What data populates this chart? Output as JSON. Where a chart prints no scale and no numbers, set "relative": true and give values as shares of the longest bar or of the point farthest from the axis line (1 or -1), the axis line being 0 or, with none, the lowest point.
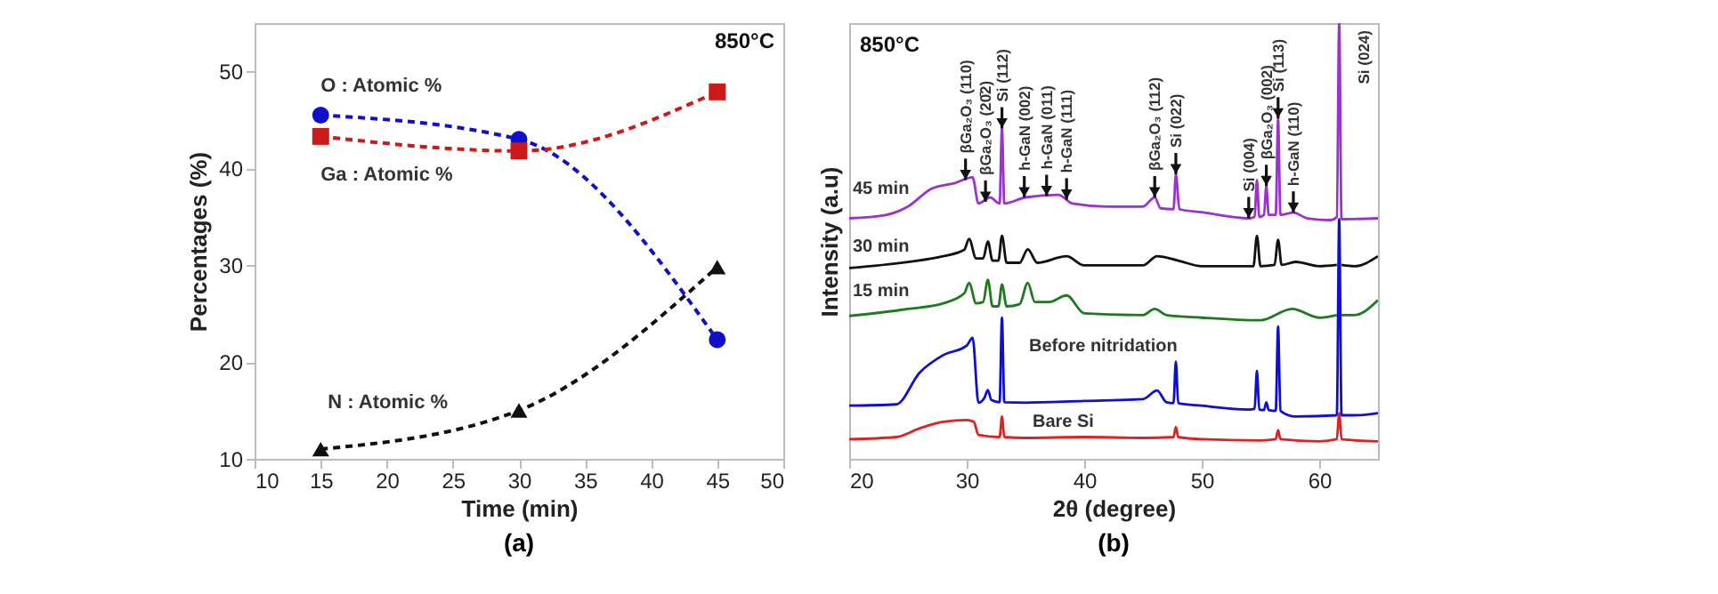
{
  "chart_data": [
    {
      "type": "line",
      "xlabel": "Time (min)",
      "ylabel": "Percentages (%)",
      "xlim": [
        10,
        50
      ],
      "xticks": [
        10,
        15,
        20,
        25,
        30,
        35,
        40,
        45,
        50
      ],
      "ylim": [
        10,
        55
      ],
      "yticks": [
        10,
        20,
        30,
        40,
        50
      ],
      "grid": false,
      "line_style": "dashed",
      "x": [
        15,
        30,
        45
      ],
      "series": [
        {
          "name": "O : Atomic %",
          "color": "#1010cc",
          "marker": "circle",
          "values": [
            45.5,
            43,
            22.3
          ]
        },
        {
          "name": "Ga : Atomic %",
          "color": "#cc1a1a",
          "marker": "square",
          "values": [
            43.3,
            41.8,
            47.9
          ]
        },
        {
          "name": "N : Atomic %",
          "color": "#111111",
          "marker": "triangle",
          "values": [
            11,
            15,
            29.8
          ]
        }
      ],
      "annotations": [
        "850°C",
        "(a)"
      ]
    },
    {
      "type": "line",
      "relative": true,
      "xlabel": "2θ (degree)",
      "ylabel": "Intensity (a.u)",
      "xlim": [
        20,
        65
      ],
      "xticks": [
        20,
        30,
        40,
        50,
        60
      ],
      "grid": false,
      "line_style": "solid",
      "marker": "none",
      "series": [
        {
          "name": "45 min",
          "color": "#9933cc",
          "x": [
            20,
            23,
            25,
            27,
            29,
            30.5,
            31,
            32,
            32.8,
            33,
            33.2,
            35,
            37.8,
            39,
            42,
            45,
            46,
            46.5,
            47.6,
            47.8,
            48.1,
            50,
            54,
            54.5,
            54.7,
            54.9,
            55.3,
            55.5,
            55.7,
            56.3,
            56.5,
            56.7,
            57.8,
            59,
            61,
            61.5,
            61.7,
            61.9,
            65
          ],
          "values": [
            0.552,
            0.559,
            0.579,
            0.62,
            0.633,
            0.646,
            0.586,
            0.6,
            0.586,
            0.758,
            0.586,
            0.6,
            0.606,
            0.586,
            0.579,
            0.579,
            0.6,
            0.575,
            0.573,
            0.653,
            0.573,
            0.566,
            0.552,
            0.555,
            0.64,
            0.555,
            0.56,
            0.626,
            0.56,
            0.56,
            0.781,
            0.56,
            0.565,
            0.552,
            0.548,
            0.555,
            1.0,
            0.55,
            0.552
          ]
        },
        {
          "name": "30 min",
          "color": "#111111",
          "x": [
            20,
            25,
            28,
            29.8,
            30.2,
            30.8,
            31.4,
            31.8,
            32.2,
            32.7,
            33,
            33.4,
            34.5,
            35.2,
            36,
            38.5,
            40,
            45,
            46.2,
            48,
            50,
            54.4,
            54.7,
            55,
            56.2,
            56.5,
            56.8,
            58,
            60,
            61.5,
            61.7,
            61.9,
            63,
            65
          ],
          "values": [
            0.438,
            0.452,
            0.465,
            0.48,
            0.505,
            0.46,
            0.46,
            0.499,
            0.455,
            0.455,
            0.512,
            0.45,
            0.45,
            0.481,
            0.45,
            0.465,
            0.444,
            0.444,
            0.465,
            0.455,
            0.442,
            0.442,
            0.512,
            0.442,
            0.445,
            0.503,
            0.445,
            0.452,
            0.442,
            0.445,
            null,
            0.445,
            0.442,
            0.465
          ]
        },
        {
          "name": "15 min",
          "color": "#1e7a1e",
          "x": [
            20,
            25,
            28,
            29.8,
            30.2,
            30.8,
            31.4,
            31.8,
            32.2,
            32.7,
            33,
            33.4,
            34.5,
            35.2,
            35.8,
            37,
            38.5,
            40,
            45,
            46,
            47,
            50,
            55,
            57.7,
            60,
            61.5,
            61.7,
            61.9,
            63,
            65
          ],
          "values": [
            0.328,
            0.344,
            0.357,
            0.38,
            0.404,
            0.357,
            0.36,
            0.411,
            0.35,
            0.35,
            0.4,
            0.35,
            0.355,
            0.404,
            0.36,
            0.36,
            0.375,
            0.334,
            0.33,
            0.344,
            0.33,
            0.324,
            0.318,
            0.344,
            0.324,
            0.33,
            null,
            0.33,
            0.33,
            0.364
          ]
        },
        {
          "name": "Before nitridation",
          "color": "#1010cc",
          "x": [
            20,
            24,
            26,
            28,
            30,
            30.5,
            31,
            31.5,
            31.8,
            32.1,
            32.8,
            33,
            33.2,
            35,
            40,
            45,
            46.2,
            47,
            47.6,
            47.8,
            48,
            50,
            54,
            54.5,
            54.7,
            54.9,
            55.3,
            55.5,
            55.7,
            56.3,
            56.5,
            56.7,
            58,
            61.5,
            61.7,
            61.9,
            63,
            65
          ],
          "values": [
            0.122,
            0.125,
            0.198,
            0.238,
            0.26,
            0.278,
            0.129,
            0.14,
            0.158,
            0.135,
            0.13,
            0.324,
            0.13,
            0.129,
            0.133,
            0.137,
            0.157,
            0.13,
            0.128,
            0.223,
            0.128,
            0.122,
            0.113,
            0.115,
            0.202,
            0.113,
            0.112,
            0.13,
            0.112,
            0.11,
            0.304,
            0.11,
            0.097,
            0.1,
            0.55,
            0.1,
            0.1,
            0.105
          ]
        },
        {
          "name": "Bare Si",
          "color": "#dd2222",
          "x": [
            20,
            24,
            26,
            28,
            30,
            30.6,
            31,
            32.8,
            33,
            33.2,
            35,
            40,
            45,
            47.6,
            47.8,
            48,
            50,
            55,
            56.3,
            56.5,
            56.7,
            60,
            61.5,
            61.7,
            61.9,
            65
          ],
          "values": [
            0.045,
            0.05,
            0.07,
            0.085,
            0.089,
            0.085,
            0.055,
            0.05,
            0.097,
            0.05,
            0.048,
            0.05,
            0.048,
            0.05,
            0.073,
            0.05,
            0.045,
            0.042,
            0.045,
            0.066,
            0.045,
            0.04,
            0.045,
            0.105,
            0.045,
            0.04
          ]
        }
      ],
      "annotations": [
        "850°C",
        "(b)",
        "Si (024)",
        {
          "text": "βGa₂O₃ (110)",
          "x": 29.9,
          "y": 0.64
        },
        {
          "text": "βGa₂O₃ (20̄2)",
          "x": 31.6,
          "y": 0.59
        },
        {
          "text": "Si (112)",
          "x": 33,
          "y": 0.758
        },
        {
          "text": "h-GaN (002)",
          "x": 34.9,
          "y": 0.6
        },
        {
          "text": "h-GaN (011)",
          "x": 36.8,
          "y": 0.603
        },
        {
          "text": "h-GaN (111)",
          "x": 38.5,
          "y": 0.595
        },
        {
          "text": "βGa₂O₃ (112)",
          "x": 46,
          "y": 0.6
        },
        {
          "text": "Si (022)",
          "x": 47.8,
          "y": 0.653
        },
        {
          "text": "Si (004)",
          "x": 54,
          "y": 0.552
        },
        {
          "text": "βGa₂O₃ (002)",
          "x": 55.5,
          "y": 0.626
        },
        {
          "text": "Si (113)",
          "x": 56.5,
          "y": 0.781
        },
        {
          "text": "h-GaN (110)",
          "x": 57.8,
          "y": 0.565
        }
      ]
    }
  ]
}
